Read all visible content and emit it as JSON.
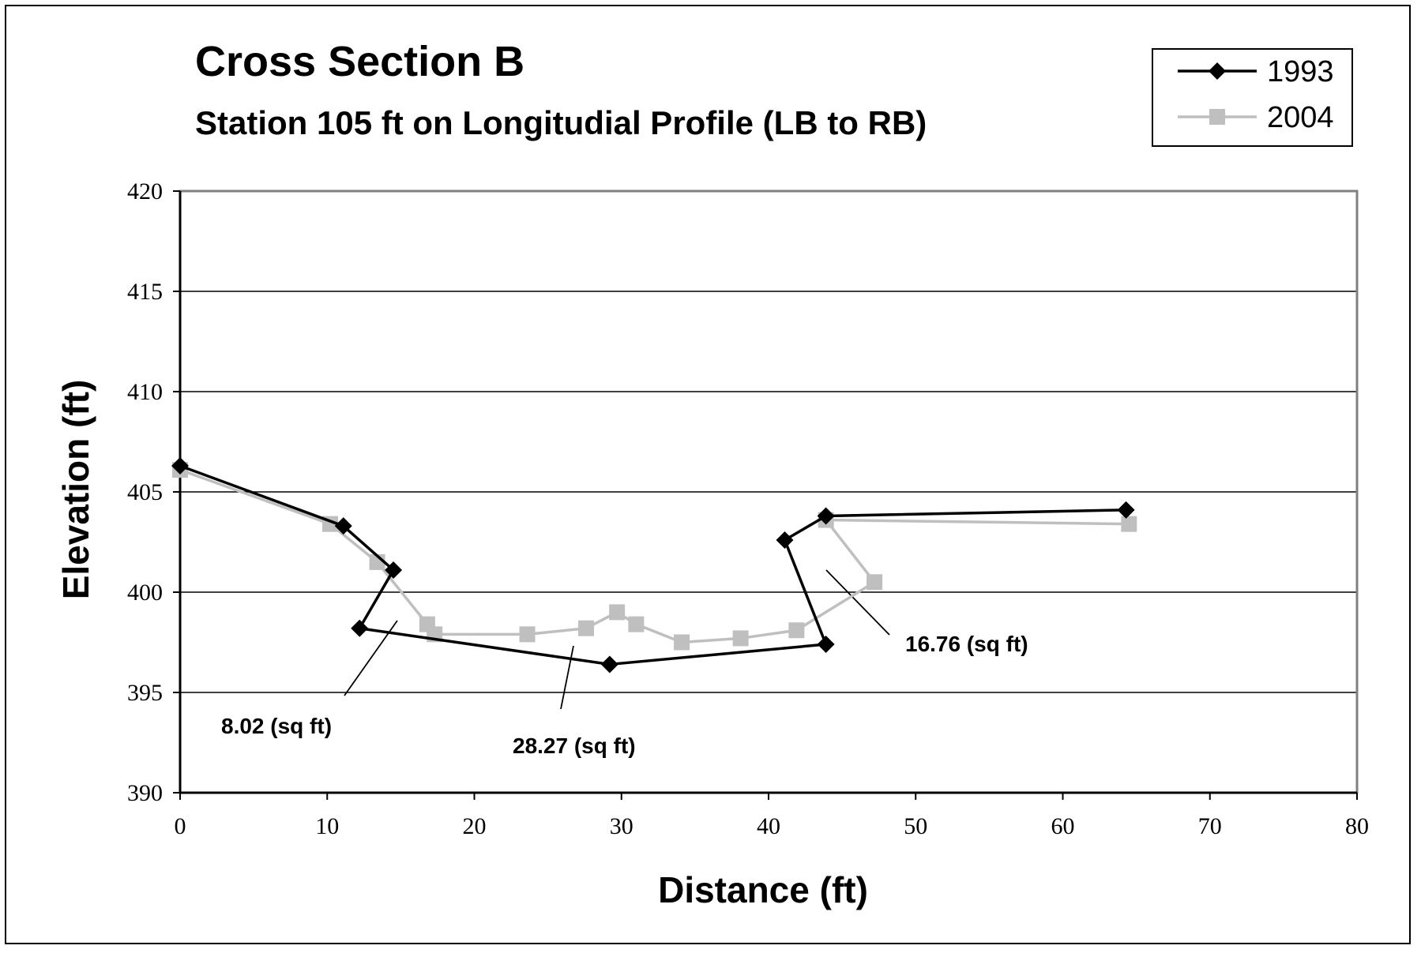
{
  "chart_data": {
    "type": "line",
    "title": "Cross Section B",
    "subtitle": "Station 105 ft on Longitudial Profile (LB to RB)",
    "xlabel": "Distance (ft)",
    "ylabel": "Elevation (ft)",
    "xlim": [
      0,
      80
    ],
    "ylim": [
      390,
      420
    ],
    "x_ticks": [
      0,
      10,
      20,
      30,
      40,
      50,
      60,
      70,
      80
    ],
    "y_ticks": [
      390,
      395,
      400,
      405,
      410,
      415,
      420
    ],
    "grid": "horizontal",
    "legend_position": "top-right",
    "series": [
      {
        "name": "1993",
        "color": "#000000",
        "marker": "diamond",
        "points": [
          [
            0,
            406.3
          ],
          [
            11.1,
            403.3
          ],
          [
            14.5,
            401.1
          ],
          [
            12.2,
            398.2
          ],
          [
            29.2,
            396.4
          ],
          [
            43.9,
            397.4
          ],
          [
            41.1,
            402.6
          ],
          [
            43.9,
            403.8
          ],
          [
            64.3,
            404.1
          ]
        ]
      },
      {
        "name": "2004",
        "color": "#bfbfbf",
        "marker": "square",
        "points": [
          [
            0,
            406.1
          ],
          [
            10.2,
            403.4
          ],
          [
            13.4,
            401.5
          ],
          [
            16.8,
            398.4
          ],
          [
            17.3,
            397.9
          ],
          [
            23.6,
            397.9
          ],
          [
            27.6,
            398.2
          ],
          [
            29.7,
            399.0
          ],
          [
            31.0,
            398.4
          ],
          [
            34.1,
            397.5
          ],
          [
            38.1,
            397.7
          ],
          [
            41.9,
            398.1
          ],
          [
            47.2,
            400.5
          ],
          [
            43.9,
            403.6
          ],
          [
            64.5,
            403.4
          ]
        ]
      }
    ],
    "annotations": [
      {
        "text": "8.02 (sq ft)",
        "pointer_at": [
          14.6,
          398.6
        ]
      },
      {
        "text": "28.27 (sq ft)",
        "pointer_at": [
          26.6,
          397.7
        ]
      },
      {
        "text": "16.76 (sq ft)",
        "pointer_at": [
          44.0,
          401.2
        ]
      }
    ]
  }
}
